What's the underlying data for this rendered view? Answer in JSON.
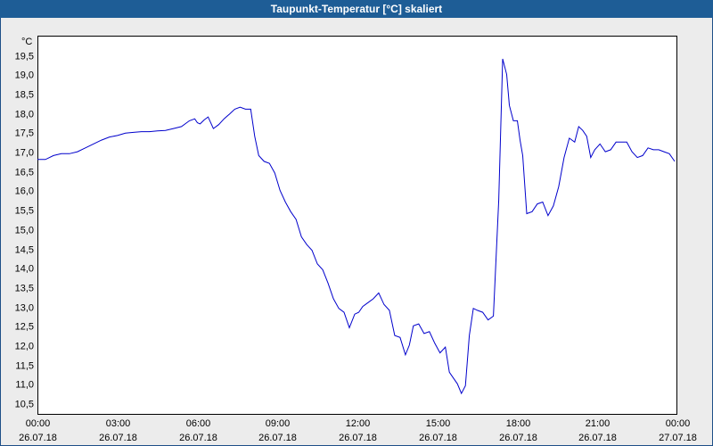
{
  "window": {
    "title": "Taupunkt-Temperatur [°C] skaliert"
  },
  "chart_data": {
    "type": "line",
    "title": "Taupunkt-Temperatur [°C] skaliert",
    "ylabel": "°C",
    "xlabel": "",
    "ylim": [
      10.2,
      20.0
    ],
    "y_ticks": [
      "10,5",
      "11,0",
      "11,5",
      "12,0",
      "12,5",
      "13,0",
      "13,5",
      "14,0",
      "14,5",
      "15,0",
      "15,5",
      "16,0",
      "16,5",
      "17,0",
      "17,5",
      "18,0",
      "18,5",
      "19,0",
      "19,5"
    ],
    "y_tick_values": [
      10.5,
      11,
      11.5,
      12,
      12.5,
      13,
      13.5,
      14,
      14.5,
      15,
      15.5,
      16,
      16.5,
      17,
      17.5,
      18,
      18.5,
      19,
      19.5
    ],
    "x_range_hours": [
      0,
      24
    ],
    "x_ticks": [
      {
        "time": "00:00",
        "date": "26.07.18",
        "hour": 0
      },
      {
        "time": "03:00",
        "date": "26.07.18",
        "hour": 3
      },
      {
        "time": "06:00",
        "date": "26.07.18",
        "hour": 6
      },
      {
        "time": "09:00",
        "date": "26.07.18",
        "hour": 9
      },
      {
        "time": "12:00",
        "date": "26.07.18",
        "hour": 12
      },
      {
        "time": "15:00",
        "date": "26.07.18",
        "hour": 15
      },
      {
        "time": "18:00",
        "date": "26.07.18",
        "hour": 18
      },
      {
        "time": "21:00",
        "date": "26.07.18",
        "hour": 21
      },
      {
        "time": "00:00",
        "date": "27.07.18",
        "hour": 24
      }
    ],
    "grid": true,
    "line_color": "#0000cc",
    "series": [
      {
        "x": [
          0.0,
          0.3,
          0.6,
          0.9,
          1.2,
          1.5,
          1.8,
          2.1,
          2.4,
          2.7,
          3.0,
          3.3,
          3.6,
          3.9,
          4.2,
          4.5,
          4.8,
          5.1,
          5.4,
          5.7,
          5.9,
          6.0,
          6.1,
          6.25,
          6.4,
          6.6,
          6.8,
          7.0,
          7.2,
          7.4,
          7.6,
          7.8,
          8.0,
          8.15,
          8.3,
          8.5,
          8.7,
          8.9,
          9.1,
          9.3,
          9.5,
          9.7,
          9.9,
          10.1,
          10.3,
          10.5,
          10.7,
          10.9,
          11.1,
          11.3,
          11.5,
          11.7,
          11.9,
          12.05,
          12.2,
          12.4,
          12.6,
          12.8,
          13.0,
          13.2,
          13.4,
          13.6,
          13.8,
          13.95,
          14.1,
          14.3,
          14.5,
          14.7,
          14.9,
          15.1,
          15.3,
          15.45,
          15.6,
          15.75,
          15.9,
          16.05,
          16.2,
          16.35,
          16.5,
          16.7,
          16.9,
          17.1,
          17.3,
          17.45,
          17.6,
          17.7,
          17.85,
          18.0,
          18.1,
          18.2,
          18.35,
          18.55,
          18.75,
          18.95,
          19.15,
          19.35,
          19.55,
          19.75,
          19.95,
          20.15,
          20.3,
          20.45,
          20.6,
          20.75,
          20.9,
          21.1,
          21.3,
          21.5,
          21.7,
          21.9,
          22.1,
          22.3,
          22.5,
          22.7,
          22.9,
          23.1,
          23.3,
          23.5,
          23.7,
          23.9
        ],
        "y": [
          16.8,
          16.8,
          16.9,
          16.95,
          16.95,
          17.0,
          17.1,
          17.2,
          17.3,
          17.38,
          17.42,
          17.48,
          17.5,
          17.52,
          17.52,
          17.54,
          17.55,
          17.6,
          17.65,
          17.8,
          17.85,
          17.75,
          17.72,
          17.82,
          17.9,
          17.6,
          17.7,
          17.85,
          17.97,
          18.1,
          18.15,
          18.1,
          18.1,
          17.4,
          16.9,
          16.75,
          16.7,
          16.45,
          16.0,
          15.7,
          15.45,
          15.25,
          14.8,
          14.6,
          14.45,
          14.1,
          13.95,
          13.6,
          13.2,
          12.95,
          12.85,
          12.45,
          12.8,
          12.85,
          13.0,
          13.1,
          13.2,
          13.35,
          13.05,
          12.9,
          12.25,
          12.2,
          11.75,
          12.0,
          12.5,
          12.55,
          12.3,
          12.35,
          12.05,
          11.8,
          11.95,
          11.3,
          11.15,
          11.0,
          10.75,
          10.95,
          12.25,
          12.95,
          12.9,
          12.85,
          12.65,
          12.75,
          15.75,
          19.4,
          19.0,
          18.2,
          17.8,
          17.8,
          17.3,
          16.9,
          15.4,
          15.45,
          15.65,
          15.7,
          15.35,
          15.6,
          16.1,
          16.85,
          17.35,
          17.25,
          17.65,
          17.55,
          17.4,
          16.85,
          17.05,
          17.2,
          17.0,
          17.05,
          17.25,
          17.25,
          17.25,
          17.0,
          16.85,
          16.9,
          17.1,
          17.05,
          17.05,
          17.0,
          16.95,
          16.75
        ]
      }
    ]
  }
}
